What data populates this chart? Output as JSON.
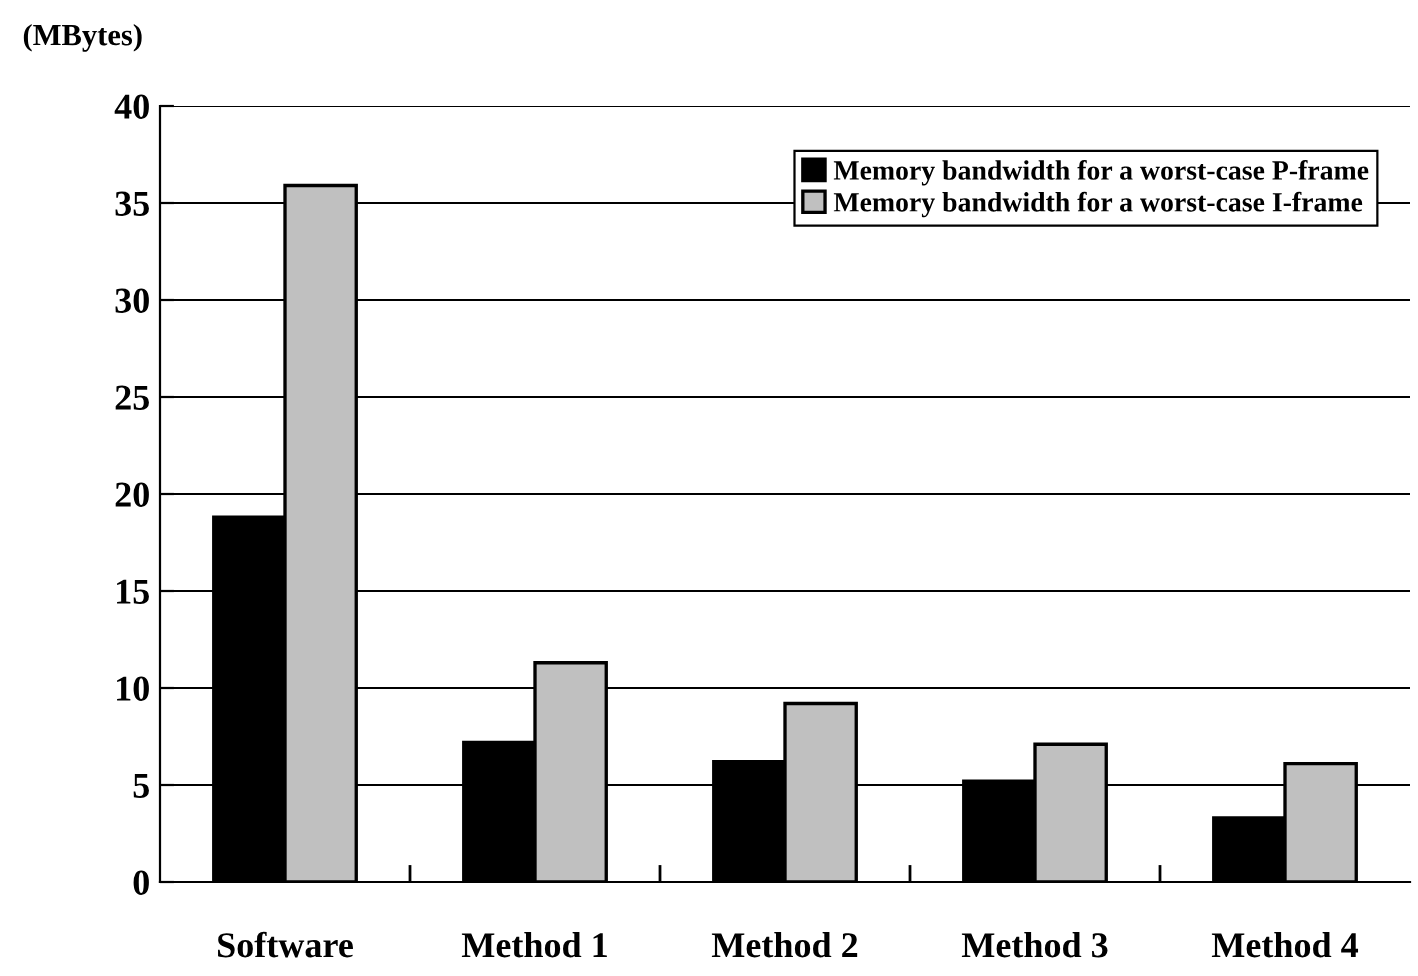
{
  "chart_data": {
    "type": "bar",
    "ylabel": "(MBytes)",
    "categories": [
      "Software",
      "Method 1",
      "Method 2",
      "Method 3",
      "Method 4"
    ],
    "series": [
      {
        "name": "Memory bandwidth for a worst-case P-frame",
        "color": "#000000",
        "values": [
          18.8,
          7.2,
          6.2,
          5.2,
          3.3
        ]
      },
      {
        "name": "Memory bandwidth for a worst-case I-frame",
        "color": "#c0c0c0",
        "values": [
          35.9,
          11.3,
          9.2,
          7.1,
          6.1
        ]
      }
    ],
    "ylim": [
      0,
      40
    ],
    "yticks": [
      0,
      5,
      10,
      15,
      20,
      25,
      30,
      35,
      40
    ],
    "grid": "y",
    "legend": "top right"
  }
}
